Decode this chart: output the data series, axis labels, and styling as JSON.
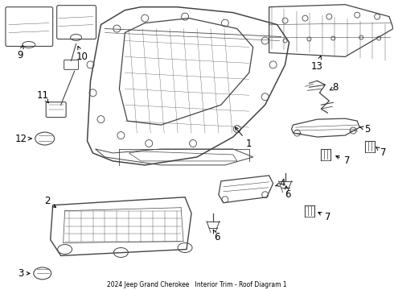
{
  "background_color": "#ffffff",
  "line_color": "#444444",
  "text_color": "#000000",
  "figure_width": 4.9,
  "figure_height": 3.6,
  "dpi": 100,
  "footer": "2024 Jeep Grand Cherokee   Interior Trim - Roof Diagram 1"
}
